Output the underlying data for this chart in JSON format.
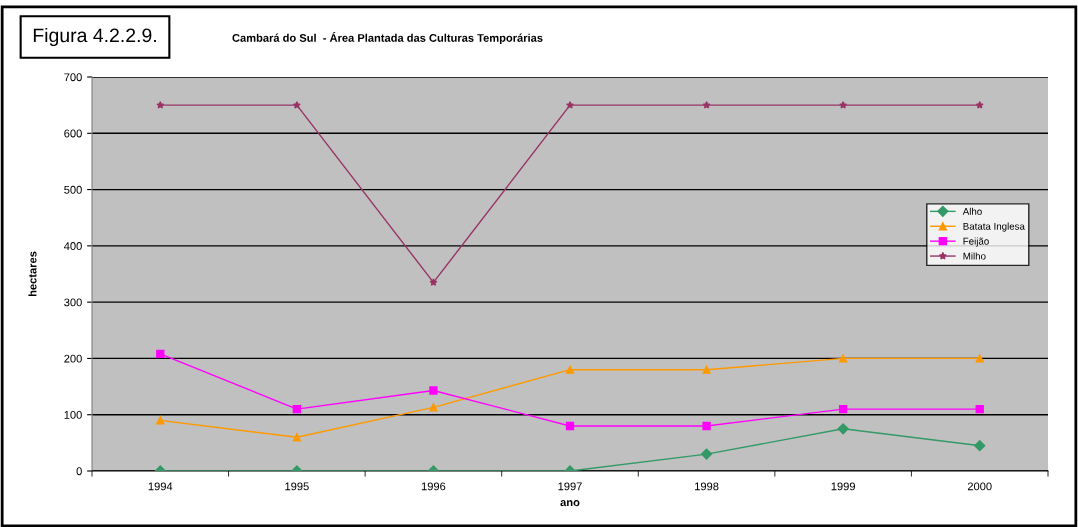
{
  "chart_data": {
    "type": "line",
    "title": "Cambará do Sul  - Área Plantada das Culturas Temporárias",
    "xlabel": "ano",
    "ylabel": "hectares",
    "annotations": [
      "Figura 4.2.2.9."
    ],
    "categories": [
      "1994",
      "1995",
      "1996",
      "1997",
      "1998",
      "1999",
      "2000"
    ],
    "series": [
      {
        "name": "Alho",
        "color": "#339966",
        "marker": "diamond",
        "values": [
          0,
          0,
          0,
          0,
          30,
          75,
          45
        ]
      },
      {
        "name": "Batata Inglesa",
        "color": "#ff9900",
        "marker": "triangle",
        "values": [
          90,
          60,
          113,
          180,
          180,
          200,
          200
        ]
      },
      {
        "name": "Feijão",
        "color": "#ff00ff",
        "marker": "square",
        "values": [
          208,
          110,
          143,
          80,
          80,
          110,
          110
        ]
      },
      {
        "name": "Milho",
        "color": "#993366",
        "marker": "star",
        "values": [
          650,
          650,
          335,
          650,
          650,
          650,
          650
        ]
      }
    ],
    "ylim": [
      0,
      700
    ],
    "yticks": [
      0,
      100,
      200,
      300,
      400,
      500,
      600,
      700
    ],
    "grid": "y",
    "legend": "right",
    "line_style": "solid"
  }
}
